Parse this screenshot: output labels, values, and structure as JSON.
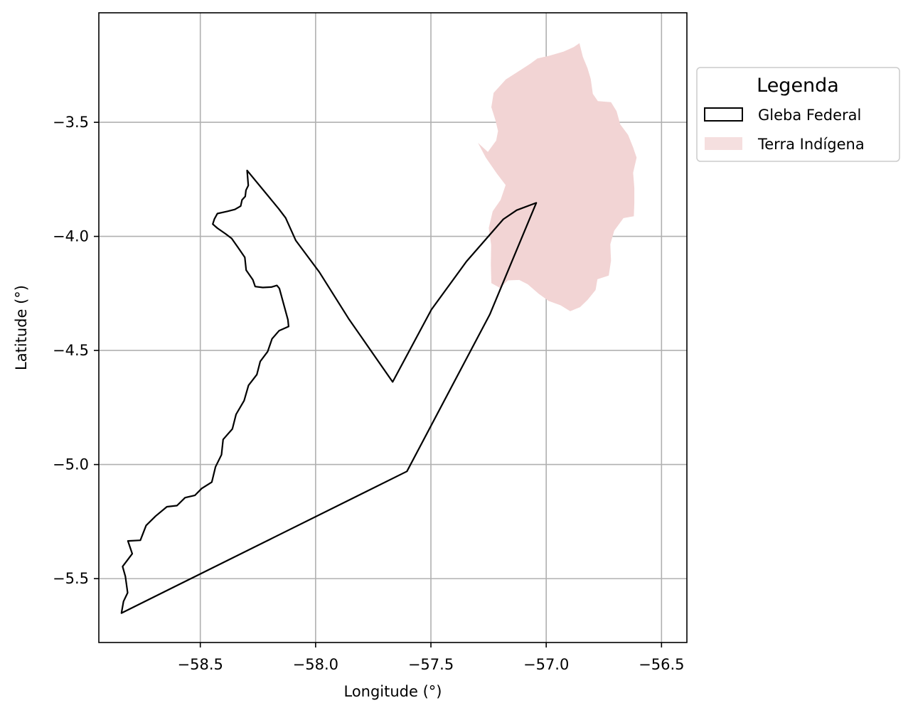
{
  "chart_data": {
    "type": "map",
    "xlabel": "Longitude (°)",
    "ylabel": "Latitude (°)",
    "xlim": [
      -58.94,
      -56.39
    ],
    "ylim": [
      -5.78,
      -3.02
    ],
    "xticks": [
      -58.5,
      -58.0,
      -57.5,
      -57.0,
      -56.5
    ],
    "xtick_labels": [
      "−58.5",
      "−58.0",
      "−57.5",
      "−57.0",
      "−56.5"
    ],
    "yticks": [
      -3.5,
      -4.0,
      -4.5,
      -5.0,
      -5.5
    ],
    "ytick_labels": [
      "−3.5",
      "−4.0",
      "−4.5",
      "−5.0",
      "−5.5"
    ],
    "grid": true,
    "legend": {
      "title": "Legenda",
      "placement": "outside-right-top",
      "entries": [
        {
          "label": "Gleba Federal",
          "style": "outline",
          "color": "#000000"
        },
        {
          "label": "Terra Indígena",
          "style": "fill",
          "color": "#f2d4d4"
        }
      ]
    },
    "layers": [
      {
        "name": "Terra Indígena",
        "fill": "#f2d4d4",
        "polygon": [
          [
            -57.296,
            -3.59
          ],
          [
            -57.253,
            -3.63
          ],
          [
            -57.217,
            -3.58
          ],
          [
            -57.209,
            -3.538
          ],
          [
            -57.221,
            -3.488
          ],
          [
            -57.238,
            -3.434
          ],
          [
            -57.228,
            -3.371
          ],
          [
            -57.175,
            -3.312
          ],
          [
            -57.108,
            -3.269
          ],
          [
            -57.069,
            -3.243
          ],
          [
            -57.038,
            -3.22
          ],
          [
            -56.99,
            -3.209
          ],
          [
            -56.925,
            -3.19
          ],
          [
            -56.881,
            -3.17
          ],
          [
            -56.856,
            -3.153
          ],
          [
            -56.841,
            -3.213
          ],
          [
            -56.821,
            -3.262
          ],
          [
            -56.807,
            -3.31
          ],
          [
            -56.798,
            -3.375
          ],
          [
            -56.776,
            -3.407
          ],
          [
            -56.719,
            -3.412
          ],
          [
            -56.695,
            -3.451
          ],
          [
            -56.679,
            -3.509
          ],
          [
            -56.645,
            -3.555
          ],
          [
            -56.623,
            -3.61
          ],
          [
            -56.608,
            -3.655
          ],
          [
            -56.623,
            -3.721
          ],
          [
            -56.618,
            -3.788
          ],
          [
            -56.618,
            -3.855
          ],
          [
            -56.62,
            -3.912
          ],
          [
            -56.665,
            -3.92
          ],
          [
            -56.705,
            -3.975
          ],
          [
            -56.722,
            -4.035
          ],
          [
            -56.719,
            -4.107
          ],
          [
            -56.729,
            -4.172
          ],
          [
            -56.778,
            -4.188
          ],
          [
            -56.786,
            -4.235
          ],
          [
            -56.82,
            -4.278
          ],
          [
            -56.853,
            -4.31
          ],
          [
            -56.896,
            -4.328
          ],
          [
            -56.938,
            -4.302
          ],
          [
            -56.99,
            -4.283
          ],
          [
            -57.033,
            -4.251
          ],
          [
            -57.08,
            -4.21
          ],
          [
            -57.117,
            -4.191
          ],
          [
            -57.166,
            -4.193
          ],
          [
            -57.2,
            -4.226
          ],
          [
            -57.238,
            -4.205
          ],
          [
            -57.24,
            -4.123
          ],
          [
            -57.239,
            -4.037
          ],
          [
            -57.249,
            -3.963
          ],
          [
            -57.232,
            -3.89
          ],
          [
            -57.198,
            -3.84
          ],
          [
            -57.176,
            -3.775
          ],
          [
            -57.214,
            -3.725
          ],
          [
            -57.262,
            -3.655
          ],
          [
            -57.296,
            -3.59
          ]
        ]
      },
      {
        "name": "Gleba Federal",
        "stroke": "#000000",
        "polygon": [
          [
            -58.297,
            -3.711
          ],
          [
            -58.16,
            -3.879
          ],
          [
            -58.13,
            -3.919
          ],
          [
            -58.086,
            -4.018
          ],
          [
            -57.984,
            -4.156
          ],
          [
            -57.857,
            -4.36
          ],
          [
            -57.666,
            -4.638
          ],
          [
            -57.498,
            -4.321
          ],
          [
            -57.346,
            -4.11
          ],
          [
            -57.186,
            -3.925
          ],
          [
            -57.128,
            -3.885
          ],
          [
            -57.043,
            -3.853
          ],
          [
            -57.244,
            -4.341
          ],
          [
            -57.604,
            -5.03
          ],
          [
            -58.842,
            -5.651
          ],
          [
            -58.833,
            -5.6
          ],
          [
            -58.815,
            -5.562
          ],
          [
            -58.825,
            -5.49
          ],
          [
            -58.837,
            -5.447
          ],
          [
            -58.795,
            -5.391
          ],
          [
            -58.814,
            -5.335
          ],
          [
            -58.76,
            -5.332
          ],
          [
            -58.735,
            -5.267
          ],
          [
            -58.694,
            -5.226
          ],
          [
            -58.645,
            -5.185
          ],
          [
            -58.601,
            -5.18
          ],
          [
            -58.566,
            -5.145
          ],
          [
            -58.523,
            -5.135
          ],
          [
            -58.494,
            -5.105
          ],
          [
            -58.45,
            -5.077
          ],
          [
            -58.434,
            -5.01
          ],
          [
            -58.408,
            -4.957
          ],
          [
            -58.401,
            -4.89
          ],
          [
            -58.361,
            -4.844
          ],
          [
            -58.345,
            -4.78
          ],
          [
            -58.31,
            -4.72
          ],
          [
            -58.291,
            -4.653
          ],
          [
            -58.255,
            -4.606
          ],
          [
            -58.24,
            -4.548
          ],
          [
            -58.208,
            -4.505
          ],
          [
            -58.189,
            -4.449
          ],
          [
            -58.158,
            -4.413
          ],
          [
            -58.117,
            -4.395
          ],
          [
            -58.12,
            -4.365
          ],
          [
            -58.157,
            -4.228
          ],
          [
            -58.168,
            -4.215
          ],
          [
            -58.192,
            -4.222
          ],
          [
            -58.229,
            -4.224
          ],
          [
            -58.262,
            -4.22
          ],
          [
            -58.272,
            -4.19
          ],
          [
            -58.301,
            -4.148
          ],
          [
            -58.307,
            -4.092
          ],
          [
            -58.337,
            -4.048
          ],
          [
            -58.364,
            -4.009
          ],
          [
            -58.39,
            -3.989
          ],
          [
            -58.426,
            -3.964
          ],
          [
            -58.446,
            -3.946
          ],
          [
            -58.439,
            -3.924
          ],
          [
            -58.426,
            -3.9
          ],
          [
            -58.382,
            -3.89
          ],
          [
            -58.35,
            -3.882
          ],
          [
            -58.325,
            -3.867
          ],
          [
            -58.319,
            -3.84
          ],
          [
            -58.305,
            -3.825
          ],
          [
            -58.302,
            -3.798
          ],
          [
            -58.292,
            -3.777
          ],
          [
            -58.297,
            -3.711
          ]
        ]
      }
    ]
  }
}
